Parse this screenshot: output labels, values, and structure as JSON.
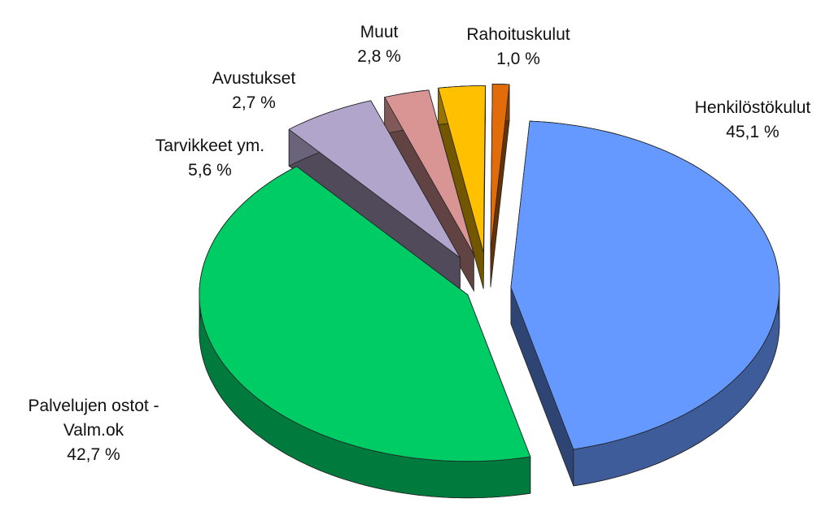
{
  "chart_data": {
    "type": "pie",
    "categories": [
      "Henkilöstökulut",
      "Palvelujen ostot - Valm.ok",
      "Tarvikkeet ym.",
      "Avustukset",
      "Muut",
      "Rahoituskulut"
    ],
    "values": [
      45.1,
      42.7,
      5.6,
      2.7,
      2.8,
      1.0
    ],
    "value_labels": [
      "45,1 %",
      "42,7 %",
      "5,6 %",
      "2,7 %",
      "2,8 %",
      "1,0 %"
    ],
    "colors": [
      "#6699ff",
      "#00cc66",
      "#b1a5cb",
      "#d99594",
      "#ffc000",
      "#e36c0a"
    ]
  }
}
